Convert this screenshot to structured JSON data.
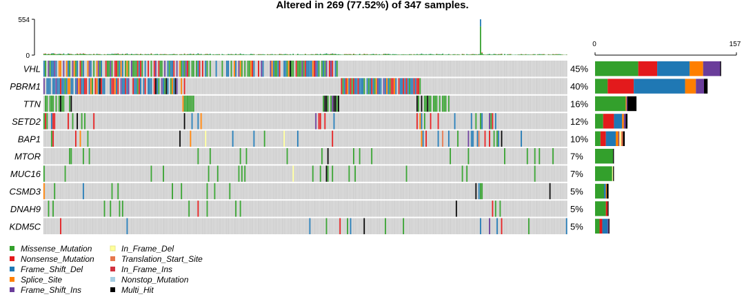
{
  "chart_data": {
    "type": "oncoplot",
    "title": "Altered in 269 (77.52%) of 347 samples.",
    "tmb_axis": {
      "min": 0,
      "max": 554,
      "ticks": [
        "554",
        "0"
      ]
    },
    "side_axis": {
      "min": 0,
      "max": 157,
      "ticks": [
        "0",
        "157"
      ]
    },
    "n_samples": 347,
    "genes": [
      {
        "name": "VHL",
        "pct": "45%",
        "counts": {
          "Missense_Mutation": 48,
          "Nonsense_Mutation": 21,
          "Frame_Shift_Del": 36,
          "Splice_Site": 15,
          "Frame_Shift_Ins": 19,
          "Multi_Hit": 1
        }
      },
      {
        "name": "PBRM1",
        "pct": "40%",
        "counts": {
          "Missense_Mutation": 14,
          "Nonsense_Mutation": 29,
          "Frame_Shift_Del": 57,
          "Splice_Site": 12,
          "Frame_Shift_Ins": 9,
          "Multi_Hit": 4
        }
      },
      {
        "name": "TTN",
        "pct": "16%",
        "counts": {
          "Missense_Mutation": 34,
          "Splice_Site": 1,
          "Frame_Shift_Ins": 1,
          "Multi_Hit": 10
        }
      },
      {
        "name": "SETD2",
        "pct": "12%",
        "counts": {
          "Missense_Mutation": 9,
          "Nonsense_Mutation": 12,
          "Frame_Shift_Del": 9,
          "Splice_Site": 2,
          "Frame_Shift_Ins": 2,
          "Multi_Hit": 2
        }
      },
      {
        "name": "BAP1",
        "pct": "10%",
        "counts": {
          "Missense_Mutation": 6,
          "Nonsense_Mutation": 6,
          "Frame_Shift_Del": 11,
          "Splice_Site": 3,
          "Frame_Shift_Ins": 1,
          "In_Frame_Del": 2,
          "Translation_Start_Site": 2,
          "Multi_Hit": 2
        }
      },
      {
        "name": "MTOR",
        "pct": "7%",
        "counts": {
          "Missense_Mutation": 20,
          "Multi_Hit": 1
        }
      },
      {
        "name": "MUC16",
        "pct": "7%",
        "counts": {
          "Missense_Mutation": 19,
          "In_Frame_Del": 1,
          "Multi_Hit": 1
        }
      },
      {
        "name": "CSMD3",
        "pct": "5%",
        "counts": {
          "Missense_Mutation": 10,
          "Frame_Shift_Del": 2,
          "Splice_Site": 1,
          "Multi_Hit": 2
        }
      },
      {
        "name": "DNAH9",
        "pct": "5%",
        "counts": {
          "Missense_Mutation": 12,
          "Nonsense_Mutation": 2,
          "Multi_Hit": 1
        }
      },
      {
        "name": "KDM5C",
        "pct": "5%",
        "counts": {
          "Missense_Mutation": 5,
          "Nonsense_Mutation": 3,
          "Frame_Shift_Del": 6,
          "Frame_Shift_Ins": 1,
          "Multi_Hit": 1
        }
      }
    ],
    "legend": [
      {
        "label": "Missense_Mutation",
        "color": "#33A02C"
      },
      {
        "label": "Nonsense_Mutation",
        "color": "#E31A1C"
      },
      {
        "label": "Frame_Shift_Del",
        "color": "#1F78B4"
      },
      {
        "label": "Splice_Site",
        "color": "#FF7F00"
      },
      {
        "label": "Frame_Shift_Ins",
        "color": "#6A3D9A"
      },
      {
        "label": "In_Frame_Del",
        "color": "#FFFF99"
      },
      {
        "label": "Translation_Start_Site",
        "color": "#E6764D"
      },
      {
        "label": "In_Frame_Ins",
        "color": "#D0313E"
      },
      {
        "label": "Nonstop_Mutation",
        "color": "#A6CEE3"
      },
      {
        "label": "Multi_Hit",
        "color": "#000000"
      }
    ],
    "background_color": "#CCCCCC"
  }
}
